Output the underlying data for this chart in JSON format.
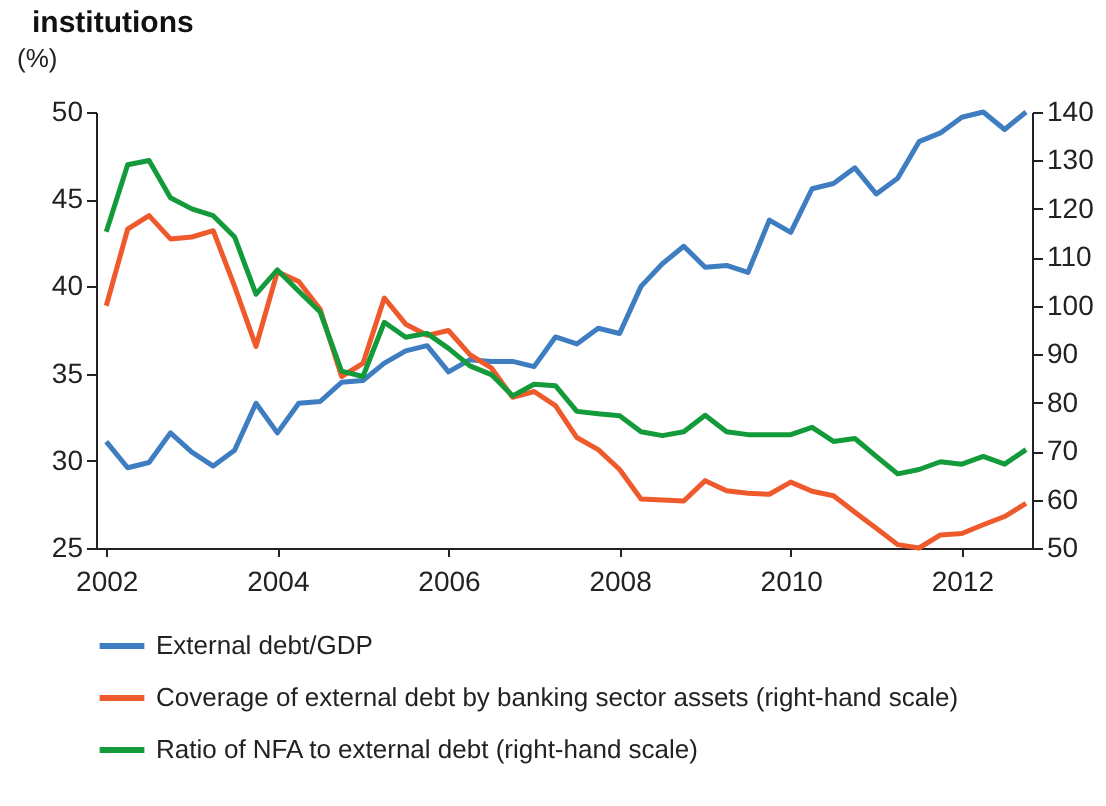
{
  "chart_data": {
    "type": "line",
    "title": "institutions",
    "ylabel": "(%)",
    "x": [
      2002,
      2002.25,
      2002.5,
      2002.75,
      2003,
      2003.25,
      2003.5,
      2003.75,
      2004,
      2004.25,
      2004.5,
      2004.75,
      2005,
      2005.25,
      2005.5,
      2005.75,
      2006,
      2006.25,
      2006.5,
      2006.75,
      2007,
      2007.25,
      2007.5,
      2007.75,
      2008,
      2008.25,
      2008.5,
      2008.75,
      2009,
      2009.25,
      2009.5,
      2009.75,
      2010,
      2010.25,
      2010.5,
      2010.75,
      2011,
      2011.25,
      2011.5,
      2011.75,
      2012,
      2012.25,
      2012.5,
      2012.75
    ],
    "xlim": [
      2001.88,
      2012.82
    ],
    "xticks": [
      2002,
      2004,
      2006,
      2008,
      2010,
      2012
    ],
    "ylim": [
      25,
      50
    ],
    "yticks": [
      25,
      30,
      35,
      40,
      45,
      50
    ],
    "y2lim": [
      50,
      140
    ],
    "y2ticks": [
      50,
      60,
      70,
      80,
      90,
      100,
      110,
      120,
      130,
      140
    ],
    "legend": "bottom",
    "grid": false,
    "series": [
      {
        "name": "External debt/GDP",
        "color": "#3f7dc1",
        "values": [
          31.1,
          29.6,
          29.9,
          31.6,
          30.5,
          29.7,
          30.6,
          33.3,
          31.6,
          33.3,
          33.4,
          34.5,
          34.6,
          35.6,
          36.3,
          36.6,
          35.1,
          35.8,
          35.7,
          35.7,
          35.4,
          37.1,
          36.7,
          37.6,
          37.3,
          40.0,
          41.3,
          42.3,
          41.1,
          41.2,
          40.8,
          43.8,
          43.1,
          45.6,
          45.9,
          46.8,
          45.3,
          46.2,
          48.3,
          48.8,
          49.7,
          50.0,
          49.0,
          50.0
        ]
      },
      {
        "name": "Coverage of external debt by banking sector assets (right-hand scale)",
        "color": "#ef5a2d",
        "axis": "y2",
        "values": [
          100.0,
          115.8,
          118.6,
          113.8,
          114.2,
          115.5,
          104.0,
          91.6,
          107.0,
          105.0,
          99.3,
          85.4,
          88.1,
          101.6,
          96.2,
          93.9,
          94.9,
          89.9,
          87.2,
          81.1,
          82.3,
          79.4,
          72.8,
          70.3,
          66.2,
          60.1,
          59.9,
          59.7,
          63.9,
          61.8,
          61.3,
          61.1,
          63.6,
          61.7,
          60.8,
          57.4,
          54.1,
          50.7,
          50.0,
          52.7,
          53.0,
          54.8,
          56.5,
          59.2
        ]
      },
      {
        "name": "Ratio of NFA to external debt (right-hand scale)",
        "color": "#139a3a",
        "axis": "y2",
        "values": [
          115.3,
          129.1,
          130.0,
          122.3,
          120.0,
          118.6,
          114.2,
          102.4,
          107.4,
          103.0,
          98.7,
          86.5,
          85.4,
          96.6,
          93.5,
          94.3,
          91.2,
          87.6,
          85.8,
          81.4,
          83.8,
          83.5,
          78.2,
          77.7,
          77.3,
          74.0,
          73.2,
          74.0,
          77.4,
          74.0,
          73.4,
          73.4,
          73.4,
          74.9,
          72.0,
          72.6,
          68.9,
          65.3,
          66.2,
          67.8,
          67.3,
          68.9,
          67.3,
          70.3
        ]
      }
    ]
  }
}
